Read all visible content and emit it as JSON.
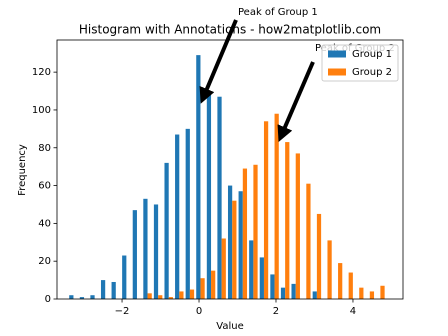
{
  "chart_data": {
    "type": "histogram",
    "title": "Histogram with Annotations - how2matplotlib.com",
    "x_label": "Value",
    "y_label": "Frequency",
    "bins": [
      -3.4,
      -3.125,
      -2.85,
      -2.575,
      -2.3,
      -2.025,
      -1.75,
      -1.475,
      -1.2,
      -0.925,
      -0.65,
      -0.375,
      -0.1,
      0.175,
      0.45,
      0.725,
      1.0,
      1.275,
      1.55,
      1.825,
      2.1,
      2.375,
      2.65,
      2.925,
      3.2,
      3.475,
      3.75,
      4.025,
      4.3,
      4.575,
      4.85
    ],
    "series": [
      {
        "name": "Group 1",
        "color": "#1f77b4",
        "values": [
          2,
          1,
          2,
          10,
          9,
          23,
          47,
          53,
          50,
          72,
          87,
          90,
          129,
          110,
          107,
          60,
          57,
          31,
          22,
          13,
          6,
          8,
          0,
          4,
          0,
          0,
          0,
          0,
          0,
          0
        ]
      },
      {
        "name": "Group 2",
        "color": "#ff7f0e",
        "values": [
          0,
          0,
          0,
          0,
          0,
          0,
          0,
          3,
          2,
          1,
          4,
          5,
          11,
          15,
          32,
          52,
          69,
          71,
          94,
          98,
          83,
          77,
          61,
          45,
          31,
          19,
          14,
          6,
          4,
          7
        ]
      }
    ],
    "xlim": [
      -3.69,
      5.3
    ],
    "ylim": [
      0,
      137
    ],
    "xticks": [
      {
        "value": -2,
        "label": "−2"
      },
      0,
      2,
      4
    ],
    "yticks": [
      0,
      20,
      40,
      60,
      80,
      100,
      120
    ],
    "legend": "upper right",
    "annotations": [
      {
        "text": "Peak of Group 1"
      },
      {
        "text": "Peak of Group 2"
      }
    ]
  }
}
